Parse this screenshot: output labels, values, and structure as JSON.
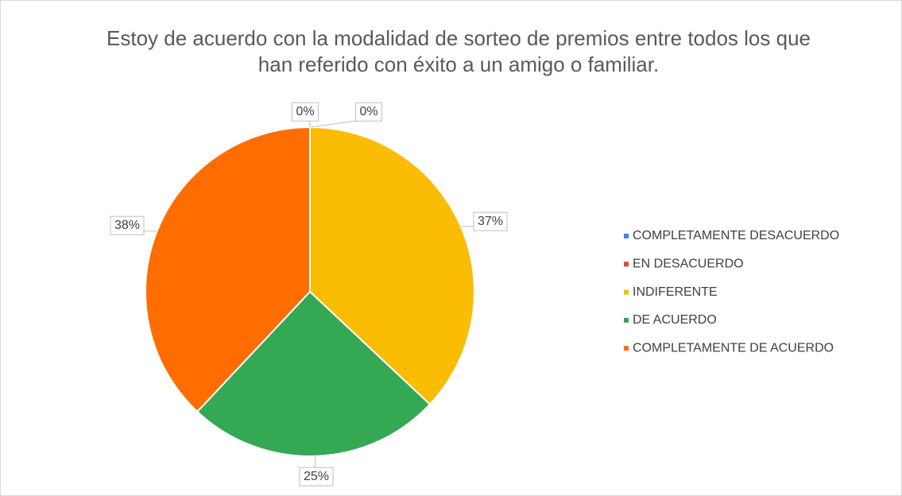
{
  "chart_data": {
    "type": "pie",
    "title": "Estoy de acuerdo con la modalidad de sorteo de premios entre todos los que han referido con éxito a un amigo o familiar.",
    "categories": [
      "COMPLETAMENTE DESACUERDO",
      "EN DESACUERDO",
      "INDIFERENTE",
      "DE ACUERDO",
      "COMPLETAMENTE DE ACUERDO"
    ],
    "values": [
      0,
      0,
      37,
      25,
      38
    ],
    "value_labels": [
      "0%",
      "0%",
      "37%",
      "25%",
      "38%"
    ],
    "colors": [
      "#4285f4",
      "#ea4335",
      "#fbbc04",
      "#34a853",
      "#ff6d01"
    ],
    "legend": "right"
  }
}
